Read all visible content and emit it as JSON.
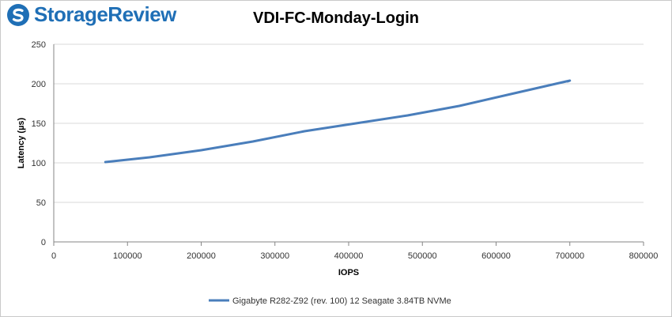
{
  "branding": {
    "logo_text": "StorageReview",
    "logo_icon": "storagereview-logo-icon",
    "logo_color": "#1f6fb6"
  },
  "chart_data": {
    "type": "line",
    "title": "VDI-FC-Monday-Login",
    "xlabel": "IOPS",
    "ylabel": "Latency (µs)",
    "xlim": [
      0,
      800000
    ],
    "ylim": [
      0,
      250
    ],
    "x_ticks": [
      "0",
      "100000",
      "200000",
      "300000",
      "400000",
      "500000",
      "600000",
      "700000",
      "800000"
    ],
    "y_ticks": [
      "0",
      "50",
      "100",
      "150",
      "200",
      "250"
    ],
    "grid": true,
    "legend_position": "bottom",
    "series": [
      {
        "name": "Gigabyte R282-Z92 (rev. 100) 12 Seagate 3.84TB NVMe",
        "color": "#4a7ebb",
        "x": [
          70000,
          130000,
          200000,
          270000,
          340000,
          410000,
          480000,
          550000,
          620000,
          695000,
          700000,
          697000
        ],
        "y": [
          101,
          107,
          116,
          127,
          140,
          150,
          160,
          172,
          187,
          203,
          204,
          203
        ]
      }
    ]
  }
}
